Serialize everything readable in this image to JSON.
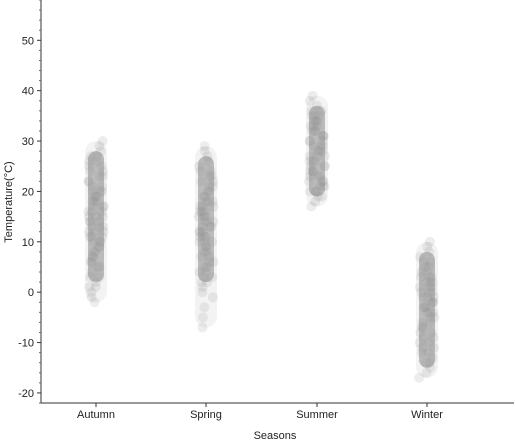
{
  "chart_data": {
    "type": "scatter",
    "title": "",
    "xlabel": "Seasons",
    "ylabel": "Temperature(°C)",
    "categories": [
      "Autumn",
      "Spring",
      "Summer",
      "Winter"
    ],
    "ylim": [
      -22,
      58
    ],
    "yticks": [
      -20,
      -10,
      0,
      10,
      20,
      30,
      40,
      50
    ],
    "grid": false,
    "legend": "none",
    "point_color": "#8c8c8c",
    "series": [
      {
        "category": "Autumn",
        "min": -2,
        "max": 30,
        "dense_low": 2,
        "dense_high": 28,
        "center": 14,
        "points": [
          -2,
          -1,
          0,
          1,
          2,
          3,
          4,
          5,
          6,
          7,
          8,
          9,
          10,
          10,
          11,
          11,
          12,
          12,
          13,
          13,
          14,
          14,
          15,
          15,
          16,
          16,
          17,
          17,
          18,
          18,
          19,
          19,
          20,
          20,
          21,
          22,
          23,
          24,
          25,
          26,
          27,
          28,
          29,
          30,
          5,
          7,
          9,
          12,
          14,
          16,
          18,
          20,
          22,
          24,
          26,
          8,
          10,
          13,
          15,
          17,
          19,
          21,
          6,
          11,
          3,
          1,
          23,
          25,
          27
        ]
      },
      {
        "category": "Spring",
        "min": -7,
        "max": 29,
        "dense_low": 2,
        "dense_high": 27,
        "center": 12,
        "points": [
          -7,
          -5,
          -3,
          -1,
          0,
          1,
          2,
          3,
          4,
          5,
          6,
          7,
          8,
          9,
          10,
          10,
          11,
          11,
          12,
          12,
          13,
          13,
          14,
          14,
          15,
          15,
          16,
          16,
          17,
          17,
          18,
          18,
          19,
          20,
          21,
          22,
          23,
          24,
          25,
          26,
          27,
          28,
          29,
          4,
          6,
          8,
          10,
          12,
          14,
          16,
          18,
          20,
          22,
          24,
          9,
          11,
          13,
          15,
          17,
          19,
          7,
          5,
          3,
          21,
          23,
          2
        ]
      },
      {
        "category": "Summer",
        "min": 17,
        "max": 39,
        "dense_low": 19,
        "dense_high": 37,
        "center": 27,
        "points": [
          17,
          18,
          19,
          19,
          20,
          20,
          21,
          21,
          22,
          22,
          23,
          23,
          24,
          24,
          25,
          25,
          26,
          26,
          27,
          27,
          28,
          28,
          29,
          29,
          30,
          30,
          31,
          31,
          32,
          32,
          33,
          33,
          34,
          34,
          35,
          35,
          36,
          37,
          38,
          39,
          21,
          23,
          25,
          27,
          29,
          31,
          33,
          35,
          22,
          24,
          26,
          28,
          30,
          32,
          34,
          20,
          36
        ]
      },
      {
        "category": "Winter",
        "min": -17,
        "max": 10,
        "dense_low": -15,
        "dense_high": 8,
        "center": -2,
        "points": [
          -17,
          -16,
          -15,
          -14,
          -13,
          -12,
          -11,
          -10,
          -9,
          -8,
          -7,
          -6,
          -5,
          -5,
          -4,
          -4,
          -3,
          -3,
          -2,
          -2,
          -1,
          -1,
          0,
          0,
          1,
          1,
          2,
          2,
          3,
          3,
          4,
          5,
          6,
          7,
          8,
          9,
          10,
          -12,
          -10,
          -8,
          -6,
          -4,
          -2,
          0,
          2,
          4,
          6,
          -11,
          -9,
          -7,
          -3,
          -1,
          1,
          3,
          5,
          -14
        ]
      }
    ]
  }
}
